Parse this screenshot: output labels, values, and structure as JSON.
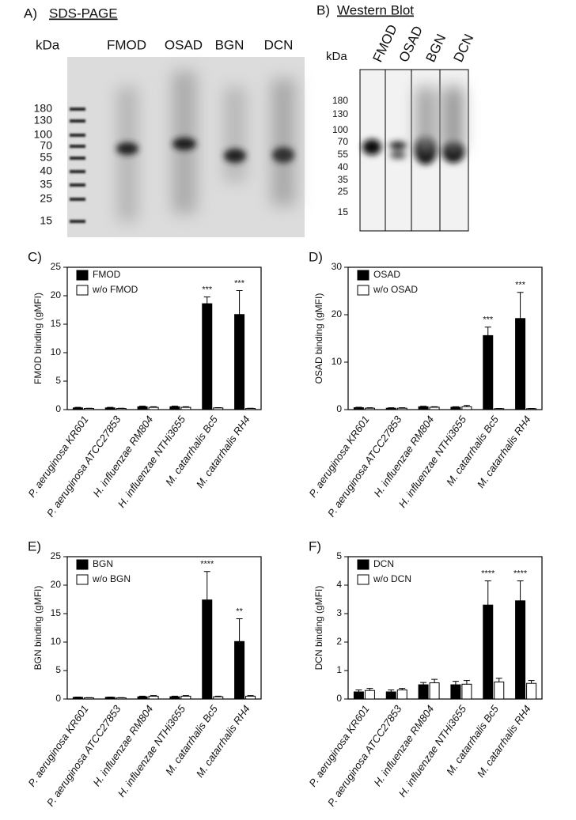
{
  "gels": {
    "sds": {
      "panel": "A)",
      "title": "SDS-PAGE",
      "unit": "kDa",
      "lanes": [
        "FMOD",
        "OSAD",
        "BGN",
        "DCN"
      ],
      "markers": [
        180,
        130,
        100,
        70,
        55,
        40,
        35,
        25,
        15
      ]
    },
    "western": {
      "panel": "B)",
      "title": "Western Blot",
      "unit": "kDa",
      "lanes": [
        "FMOD",
        "OSAD",
        "BGN",
        "DCN"
      ],
      "markers": [
        180,
        130,
        100,
        70,
        55,
        40,
        35,
        25,
        15
      ]
    }
  },
  "chart_data": [
    {
      "type": "bar",
      "panel": "C)",
      "y_label": "FMOD binding (gMFI)",
      "categories": [
        "P. aeruginosa KR601",
        "P. aeruginosa ATCC27853",
        "H. influenzae RM804",
        "H. influenzae NTHi3655",
        "M. catarrhalis Bc5",
        "M. catarrhalis RH4"
      ],
      "series": [
        {
          "name": "FMOD",
          "color": "#000000",
          "values": [
            0.3,
            0.3,
            0.5,
            0.5,
            18.6,
            16.7
          ],
          "errors": [
            0.1,
            0.1,
            0.1,
            0.1,
            1.2,
            4.2
          ],
          "significance": [
            null,
            null,
            null,
            null,
            "***",
            "***"
          ]
        },
        {
          "name": "w/o FMOD",
          "color": "#ffffff",
          "values": [
            0.2,
            0.2,
            0.4,
            0.4,
            0.3,
            0.2
          ],
          "errors": [
            0.05,
            0.05,
            0.1,
            0.1,
            0.05,
            0.05
          ]
        }
      ],
      "ylim": [
        0,
        25
      ],
      "yticks": [
        0,
        5,
        10,
        15,
        20,
        25
      ]
    },
    {
      "type": "bar",
      "panel": "D)",
      "y_label": "OSAD binding (gMFI)",
      "categories": [
        "P. aeruginosa KR601",
        "P. aeruginosa ATCC27853",
        "H. influenzae RM804",
        "H. influenzae NTHi3655",
        "M. catarrhalis Bc5",
        "M. catarrhalis RH4"
      ],
      "series": [
        {
          "name": "OSAD",
          "color": "#000000",
          "values": [
            0.4,
            0.3,
            0.6,
            0.5,
            15.6,
            19.2
          ],
          "errors": [
            0.1,
            0.1,
            0.1,
            0.1,
            1.8,
            5.5
          ],
          "significance": [
            null,
            null,
            null,
            null,
            "***",
            "***"
          ]
        },
        {
          "name": "w/o OSAD",
          "color": "#ffffff",
          "values": [
            0.3,
            0.3,
            0.5,
            0.6,
            0.2,
            0.2
          ],
          "errors": [
            0.1,
            0.1,
            0.1,
            0.3,
            0.05,
            0.05
          ]
        }
      ],
      "ylim": [
        0,
        30
      ],
      "yticks": [
        0,
        10,
        20,
        30
      ]
    },
    {
      "type": "bar",
      "panel": "E)",
      "y_label": "BGN binding (gMFI)",
      "categories": [
        "P. aeruginosa KR601",
        "P. aeruginosa ATCC27853",
        "H. influenzae RM804",
        "H. influenzae NTHi3655",
        "M. catarrhalis Bc5",
        "M. catarrhalis RH4"
      ],
      "series": [
        {
          "name": "BGN",
          "color": "#000000",
          "values": [
            0.3,
            0.3,
            0.4,
            0.4,
            17.4,
            10.1
          ],
          "errors": [
            0.05,
            0.05,
            0.1,
            0.1,
            5.0,
            4.0
          ],
          "significance": [
            null,
            null,
            null,
            null,
            "****",
            "**"
          ]
        },
        {
          "name": "w/o BGN",
          "color": "#ffffff",
          "values": [
            0.2,
            0.2,
            0.5,
            0.5,
            0.4,
            0.5
          ],
          "errors": [
            0.05,
            0.05,
            0.1,
            0.1,
            0.1,
            0.1
          ]
        }
      ],
      "ylim": [
        0,
        25
      ],
      "yticks": [
        0,
        5,
        10,
        15,
        20,
        25
      ]
    },
    {
      "type": "bar",
      "panel": "F)",
      "y_label": "DCN binding (gMFI)",
      "categories": [
        "P. aeruginosa KR601",
        "P. aeruginosa ATCC27853",
        "H. influenzae RM804",
        "H. influenzae NTHi3655",
        "M. catarrhalis Bc5",
        "M. catarrhalis RH4"
      ],
      "series": [
        {
          "name": "DCN",
          "color": "#000000",
          "values": [
            0.25,
            0.25,
            0.5,
            0.5,
            3.3,
            3.45
          ],
          "errors": [
            0.07,
            0.07,
            0.08,
            0.12,
            0.85,
            0.7
          ],
          "significance": [
            null,
            null,
            null,
            null,
            "****",
            "****"
          ]
        },
        {
          "name": "w/o DCN",
          "color": "#ffffff",
          "values": [
            0.3,
            0.32,
            0.57,
            0.52,
            0.6,
            0.55
          ],
          "errors": [
            0.07,
            0.05,
            0.12,
            0.13,
            0.13,
            0.1
          ]
        }
      ],
      "ylim": [
        0,
        5
      ],
      "yticks": [
        0,
        1,
        2,
        3,
        4,
        5
      ]
    }
  ]
}
